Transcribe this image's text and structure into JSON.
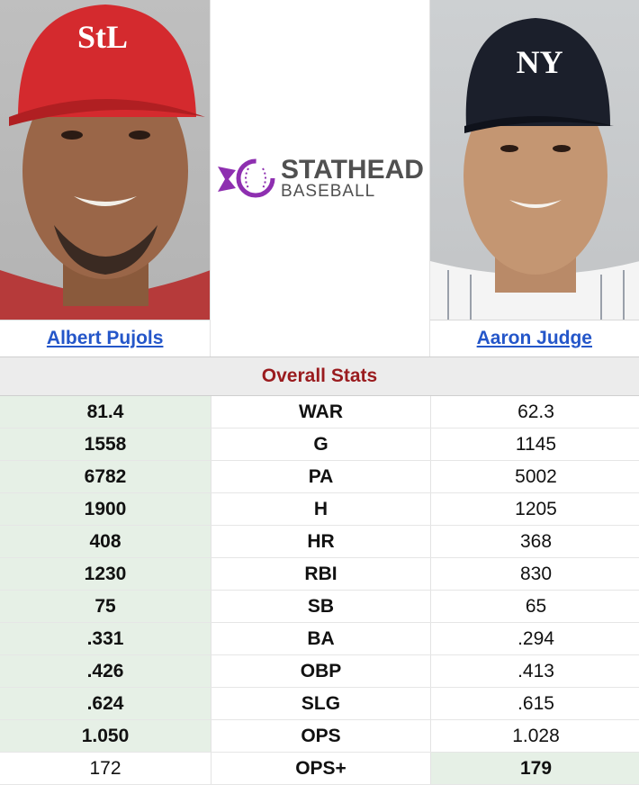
{
  "players": {
    "left": {
      "name": "Albert Pujols",
      "cap_logo": "StL"
    },
    "right": {
      "name": "Aaron Judge",
      "cap_logo": "NY"
    }
  },
  "logo": {
    "top": "STATHEAD",
    "bottom": "BASEBALL",
    "icon": "baseball-stitch-icon",
    "accent": "#8e2fb0"
  },
  "section_title": "Overall Stats",
  "colors": {
    "win": "#e6f0e6",
    "link": "#2456c9",
    "section": "#9a1b1e"
  },
  "stats": [
    {
      "label": "WAR",
      "left": "81.4",
      "right": "62.3",
      "winner": "left"
    },
    {
      "label": "G",
      "left": "1558",
      "right": "1145",
      "winner": "left"
    },
    {
      "label": "PA",
      "left": "6782",
      "right": "5002",
      "winner": "left"
    },
    {
      "label": "H",
      "left": "1900",
      "right": "1205",
      "winner": "left"
    },
    {
      "label": "HR",
      "left": "408",
      "right": "368",
      "winner": "left"
    },
    {
      "label": "RBI",
      "left": "1230",
      "right": "830",
      "winner": "left"
    },
    {
      "label": "SB",
      "left": "75",
      "right": "65",
      "winner": "left"
    },
    {
      "label": "BA",
      "left": ".331",
      "right": ".294",
      "winner": "left"
    },
    {
      "label": "OBP",
      "left": ".426",
      "right": ".413",
      "winner": "left"
    },
    {
      "label": "SLG",
      "left": ".624",
      "right": ".615",
      "winner": "left"
    },
    {
      "label": "OPS",
      "left": "1.050",
      "right": "1.028",
      "winner": "left"
    },
    {
      "label": "OPS+",
      "left": "172",
      "right": "179",
      "winner": "right"
    }
  ]
}
